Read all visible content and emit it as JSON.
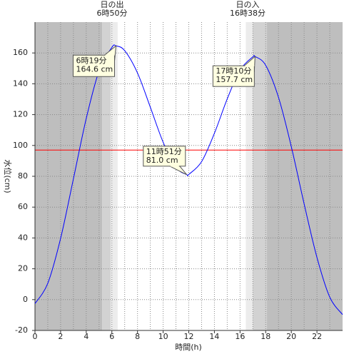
{
  "chart_data": {
    "type": "line",
    "x_label": "時間(h)",
    "y_label": "水位(cm)",
    "x": [
      0,
      1,
      2,
      3,
      4,
      5,
      6,
      6.32,
      7,
      8,
      9,
      10,
      11,
      11.85,
      12,
      13,
      14,
      15,
      16,
      17,
      17.17,
      18,
      19,
      20,
      21,
      22,
      23,
      24
    ],
    "values": [
      -2.6,
      10.6,
      39.7,
      78.4,
      117.5,
      148.3,
      163.6,
      164.6,
      161.5,
      147.0,
      124.8,
      102.1,
      85.8,
      81.0,
      81.2,
      89.5,
      107.9,
      130.2,
      148.9,
      157.5,
      157.7,
      152.0,
      131.2,
      99.2,
      62.1,
      27.4,
      1.6,
      -9.7
    ],
    "color": "#0000ff",
    "xlim": [
      0,
      24
    ],
    "ylim": [
      -20,
      180
    ],
    "xticks": [
      0,
      2,
      4,
      6,
      8,
      10,
      12,
      14,
      16,
      18,
      20,
      22
    ],
    "x_minor_ticks": [
      1,
      3,
      5,
      7,
      9,
      11,
      13,
      15,
      17,
      19,
      21,
      23
    ],
    "yticks": [
      -20,
      0,
      20,
      40,
      60,
      80,
      100,
      120,
      140,
      160
    ],
    "grid": true,
    "reference_line": {
      "value": 97,
      "color": "#ff0000"
    },
    "bands": [
      {
        "start": 0,
        "end": 5.25,
        "color": "#bebebe"
      },
      {
        "start": 5.25,
        "end": 5.9,
        "color": "#d2d2d2"
      },
      {
        "start": 5.9,
        "end": 6.45,
        "color": "#ececec"
      },
      {
        "start": 16.45,
        "end": 17.0,
        "color": "#ececec"
      },
      {
        "start": 17.0,
        "end": 18.1,
        "color": "#d2d2d2"
      },
      {
        "start": 18.1,
        "end": 24,
        "color": "#bebebe"
      }
    ],
    "sun_labels": [
      {
        "lines": [
          "日の出",
          "6時50分"
        ]
      },
      {
        "lines": [
          "日の入",
          "16時38分"
        ]
      }
    ],
    "annotations": [
      {
        "x": 6.32,
        "y": 164.6,
        "lines": [
          "6時19分",
          "164.6 cm"
        ]
      },
      {
        "x": 11.85,
        "y": 81.0,
        "lines": [
          "11時51分",
          "81.0 cm"
        ]
      },
      {
        "x": 17.17,
        "y": 157.7,
        "lines": [
          "17時10分",
          "157.7 cm"
        ]
      }
    ]
  }
}
